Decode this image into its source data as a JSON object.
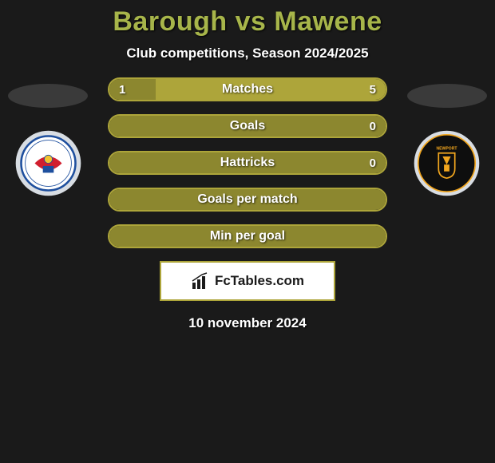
{
  "title_parts": {
    "p1": "Barough",
    "vs": "vs",
    "p2": "Mawene"
  },
  "title_color": "#a7b54a",
  "subtitle": "Club competitions, Season 2024/2025",
  "bar_border_color": "#ada53a",
  "left_fill_color": "#8c872f",
  "right_fill_color": "#ada53a",
  "bars": [
    {
      "label": "Matches",
      "left_val": "1",
      "right_val": "5",
      "left_pct": 16.7,
      "right_pct": 83.3
    },
    {
      "label": "Goals",
      "left_val": "",
      "right_val": "0",
      "left_pct": 100,
      "right_pct": 0
    },
    {
      "label": "Hattricks",
      "left_val": "",
      "right_val": "0",
      "left_pct": 100,
      "right_pct": 0
    },
    {
      "label": "Goals per match",
      "left_val": "",
      "right_val": "",
      "left_pct": 100,
      "right_pct": 0
    },
    {
      "label": "Min per goal",
      "left_val": "",
      "right_val": "",
      "left_pct": 100,
      "right_pct": 0
    }
  ],
  "brand": "FcTables.com",
  "date": "10 november 2024",
  "badge_left": {
    "outer_ring": "#d8dde3",
    "inner_bg": "#ffffff",
    "accent1": "#1e4f9e",
    "accent2": "#d11f2f"
  },
  "badge_right": {
    "outer_ring": "#d8dde3",
    "inner_bg": "#0e0e0e",
    "accent": "#f2a61e"
  }
}
